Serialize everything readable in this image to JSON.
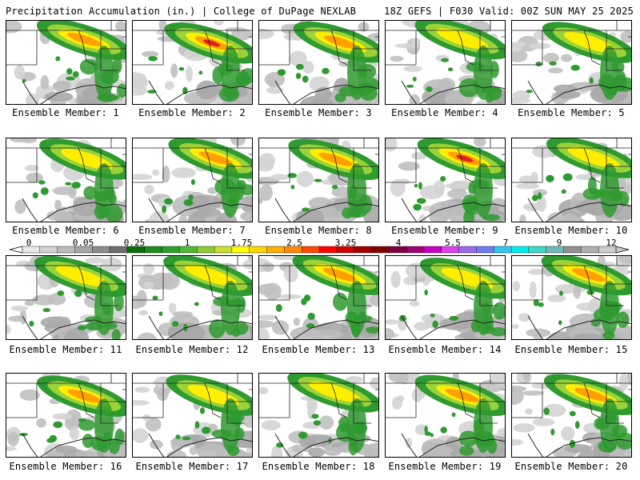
{
  "header": {
    "title": "Precipitation Accumulation (in.) | College of DuPage NEXLAB",
    "model_info": "18Z GEFS | F030 Valid: 00Z SUN MAY 25 2025"
  },
  "members": [
    {
      "label": "Ensemble Member: 1",
      "max_level": 4
    },
    {
      "label": "Ensemble Member: 2",
      "max_level": 5
    },
    {
      "label": "Ensemble Member: 3",
      "max_level": 4
    },
    {
      "label": "Ensemble Member: 4",
      "max_level": 3
    },
    {
      "label": "Ensemble Member: 5",
      "max_level": 3
    },
    {
      "label": "Ensemble Member: 6",
      "max_level": 3
    },
    {
      "label": "Ensemble Member: 7",
      "max_level": 4
    },
    {
      "label": "Ensemble Member: 8",
      "max_level": 4
    },
    {
      "label": "Ensemble Member: 9",
      "max_level": 5
    },
    {
      "label": "Ensemble Member: 10",
      "max_level": 3
    },
    {
      "label": "Ensemble Member: 11",
      "max_level": 3
    },
    {
      "label": "Ensemble Member: 12",
      "max_level": 3
    },
    {
      "label": "Ensemble Member: 13",
      "max_level": 4
    },
    {
      "label": "Ensemble Member: 14",
      "max_level": 3
    },
    {
      "label": "Ensemble Member: 15",
      "max_level": 4
    },
    {
      "label": "Ensemble Member: 16",
      "max_level": 4
    },
    {
      "label": "Ensemble Member: 17",
      "max_level": 3
    },
    {
      "label": "Ensemble Member: 18",
      "max_level": 3
    },
    {
      "label": "Ensemble Member: 19",
      "max_level": 4
    },
    {
      "label": "Ensemble Member: 20",
      "max_level": 4
    }
  ],
  "colorbar": {
    "labels": [
      "0",
      "0.05",
      "0.25",
      "1",
      "1.75",
      "2.5",
      "3.25",
      "4",
      "5.5",
      "7",
      "9",
      "12"
    ],
    "colors": [
      "#e8e8e8",
      "#d2d2d2",
      "#bcbcbc",
      "#a6a6a6",
      "#8c8c8c",
      "#6e6e6e",
      "#0a6e0a",
      "#1c8c1c",
      "#2aa02a",
      "#4cba34",
      "#8ccc30",
      "#c8e030",
      "#ffff00",
      "#ffd800",
      "#ffb000",
      "#ff8800",
      "#ff4a00",
      "#ff0000",
      "#d20000",
      "#a00000",
      "#800000",
      "#800040",
      "#a00070",
      "#c800c8",
      "#e040f0",
      "#9a6af0",
      "#6c7cf0",
      "#30c8f0",
      "#00f0f0",
      "#40d8c8",
      "#70b8b8",
      "#909090",
      "#b0b0b0",
      "#cccccc"
    ]
  }
}
